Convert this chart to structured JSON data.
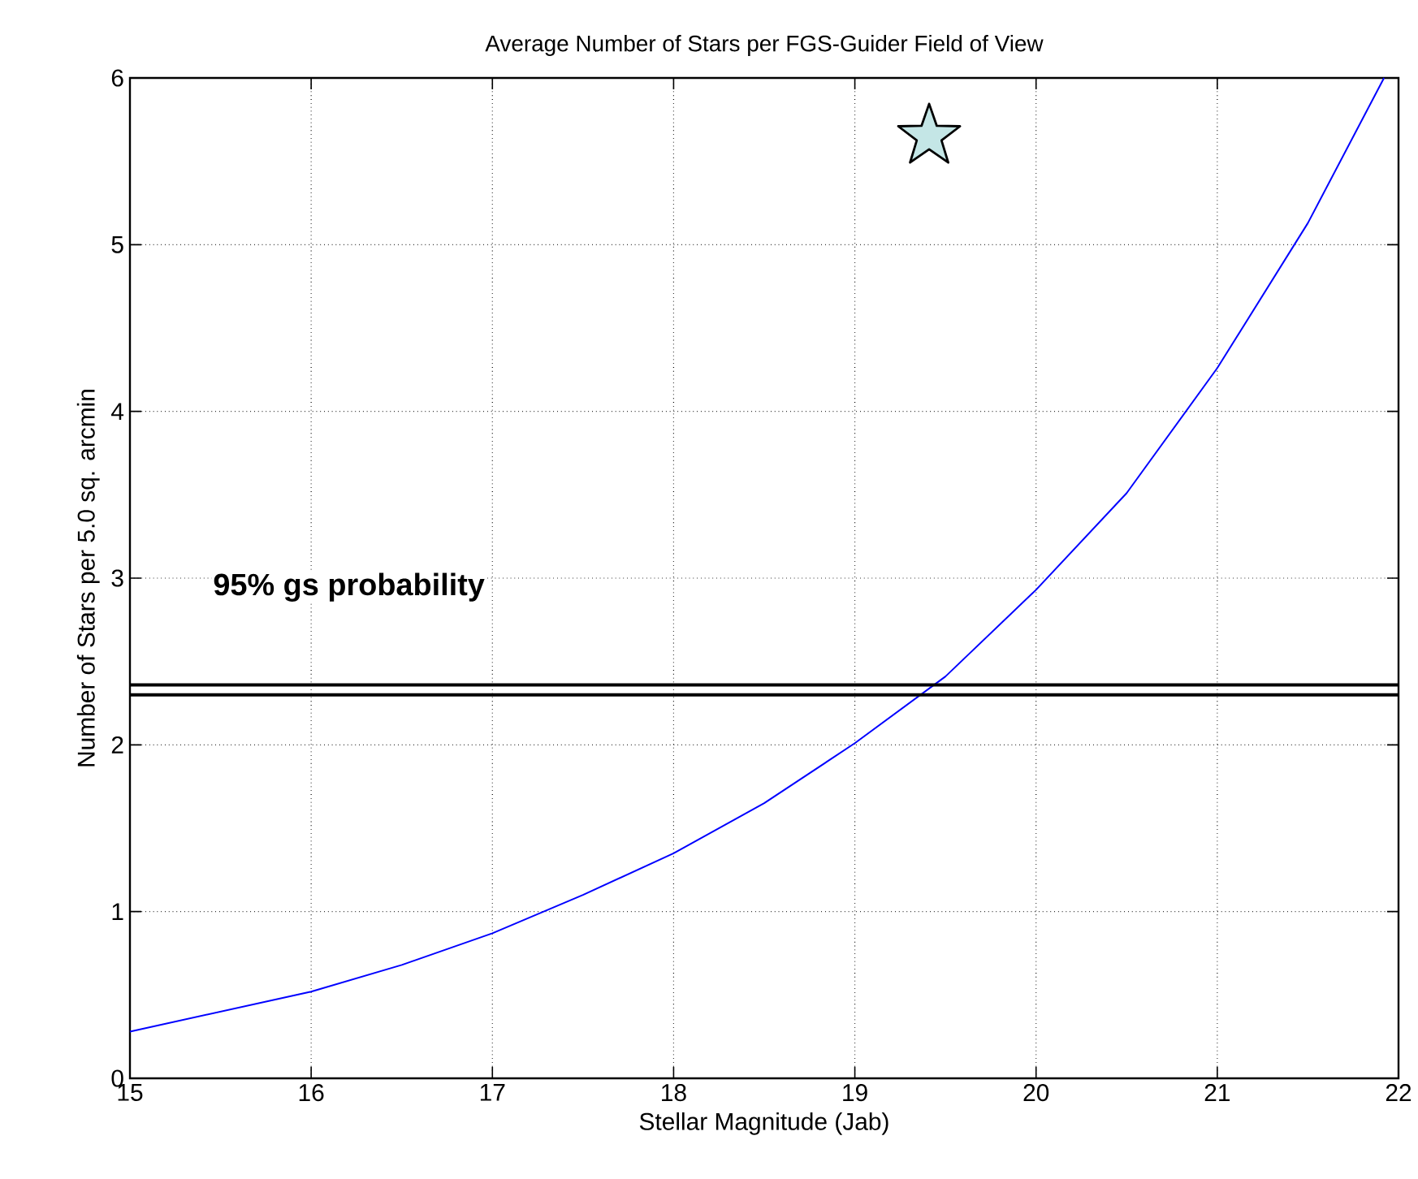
{
  "chart_data": {
    "type": "line",
    "title": "Average Number of Stars per FGS-Guider Field of View",
    "xlabel": "Stellar Magnitude (Jab)",
    "ylabel": "Number of Stars per 5.0 sq. arcmin",
    "series": [
      {
        "color": "#0000ff",
        "marker": "none",
        "line_style": "solid",
        "x": [
          15,
          15.5,
          16,
          16.5,
          17,
          17.5,
          18,
          18.5,
          19,
          19.5,
          20,
          20.5,
          21,
          21.5,
          21.92
        ],
        "values": [
          0.28,
          0.4,
          0.52,
          0.68,
          0.87,
          1.1,
          1.35,
          1.65,
          2.01,
          2.41,
          2.93,
          3.51,
          4.26,
          5.13,
          6.0
        ]
      },
      {
        "type": "scatter",
        "color": "#c4e6e6",
        "marker": "star",
        "x": [
          19.41
        ],
        "values": [
          5.65
        ]
      }
    ],
    "ref_lines": [
      {
        "axis": "y",
        "value": 2.36,
        "label": "95% gs probability",
        "color": "#000000"
      },
      {
        "axis": "y",
        "value": 2.3,
        "color": "#000000"
      }
    ],
    "xlim": [
      15,
      22
    ],
    "ylim": [
      0,
      6
    ],
    "xticks": [
      15,
      16,
      17,
      18,
      19,
      20,
      21,
      22
    ],
    "yticks": [
      0,
      1,
      2,
      3,
      4,
      5,
      6
    ],
    "grid": true
  }
}
